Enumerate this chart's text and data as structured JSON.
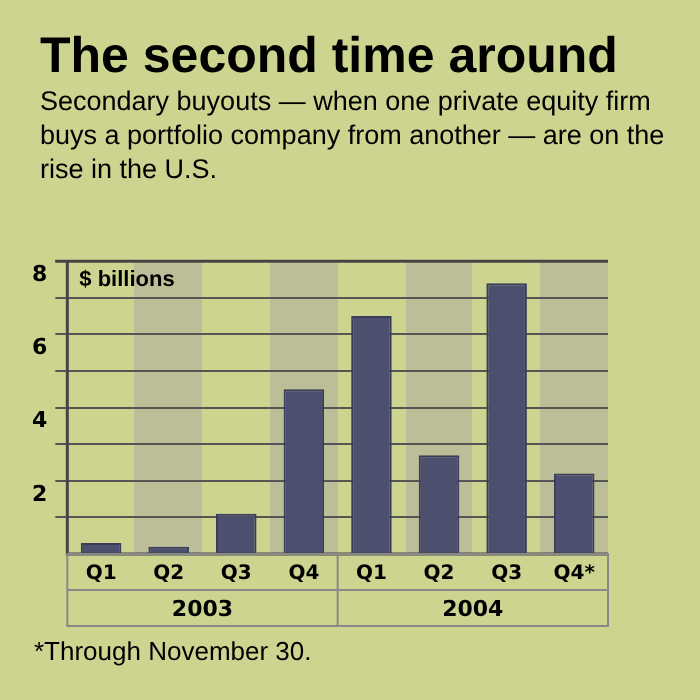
{
  "chart_data": {
    "type": "bar",
    "title": "The second time around",
    "subtitle": "Secondary buyouts — when one private equity firm buys a portfolio company from another — are on the rise in the U.S.",
    "ylabel": "$ billions",
    "categories": [
      "Q1",
      "Q2",
      "Q3",
      "Q4",
      "Q1",
      "Q2",
      "Q3",
      "Q4*"
    ],
    "values": [
      0.3,
      0.2,
      1.1,
      4.5,
      6.5,
      2.7,
      7.4,
      2.2
    ],
    "color": "#4c4f6e",
    "ylim": [
      0,
      8
    ],
    "yticks": [
      {
        "value": 1,
        "label": null
      },
      2,
      {
        "value": 3,
        "label": null
      },
      4,
      {
        "value": 5,
        "label": null
      },
      6,
      {
        "value": 7,
        "label": null
      },
      8
    ],
    "grid": "y",
    "legend": false,
    "annotations": [
      "2003",
      "2004",
      "*Through November 30."
    ]
  }
}
